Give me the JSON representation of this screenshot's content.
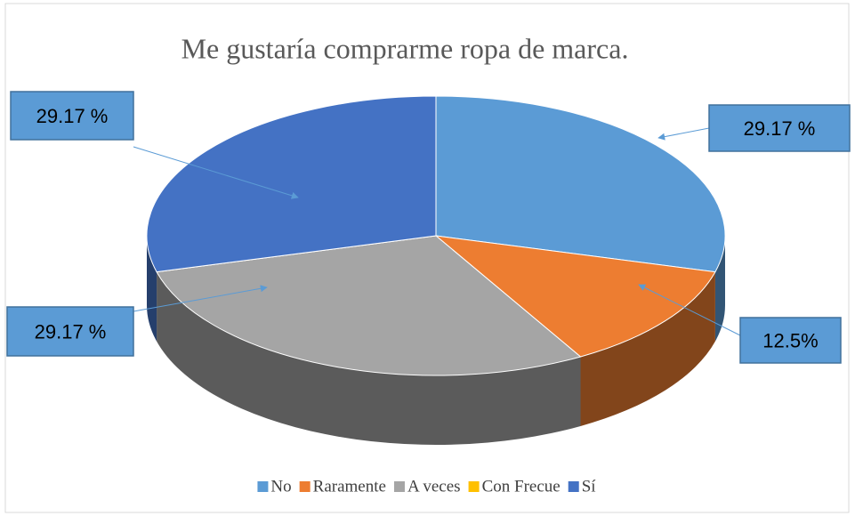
{
  "chart_data": {
    "type": "pie3d",
    "title": "Me gustaría comprarme ropa de marca.",
    "categories": [
      "No",
      "Raramente",
      "A veces",
      "Con Frecue",
      "Sí"
    ],
    "values": [
      29.17,
      12.5,
      29.17,
      0,
      29.17
    ],
    "value_labels": [
      "29.17 %",
      "12.5%",
      "29.17 %",
      null,
      "29.17 %"
    ],
    "colors": [
      "#5b9bd5",
      "#ed7d31",
      "#a5a5a5",
      "#ffc000",
      "#4472c4"
    ],
    "legend": "bottom"
  }
}
